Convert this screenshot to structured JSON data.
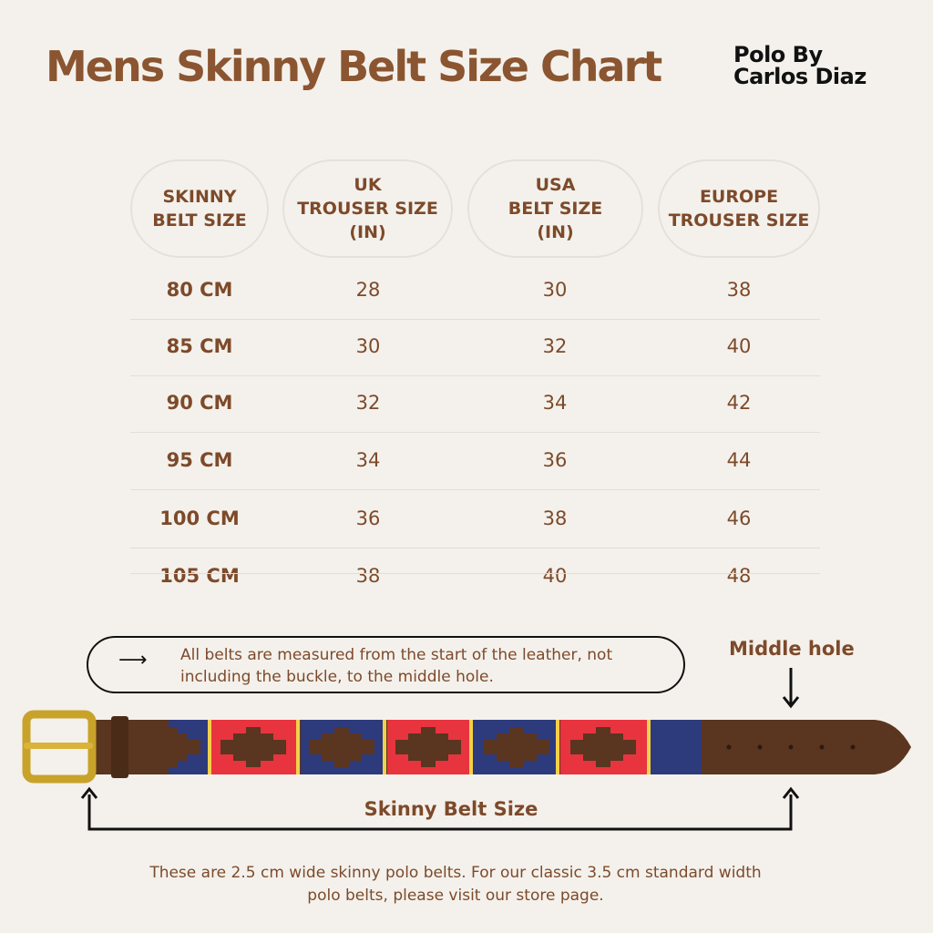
{
  "title": "Mens Skinny Belt Size Chart",
  "brand": {
    "line1": "Polo By",
    "line2": "Carlos Diaz"
  },
  "table": {
    "headers": [
      "SKINNY\nBELT SIZE",
      "UK\nTROUSER SIZE\n(IN)",
      "USA\nBELT SIZE\n(IN)",
      "EUROPE\nTROUSER SIZE"
    ],
    "rows": [
      [
        "80 CM",
        "28",
        "30",
        "38"
      ],
      [
        "85 CM",
        "30",
        "32",
        "40"
      ],
      [
        "90 CM",
        "32",
        "34",
        "42"
      ],
      [
        "95 CM",
        "34",
        "36",
        "44"
      ],
      [
        "100 CM",
        "36",
        "38",
        "46"
      ],
      [
        "105 CM",
        "38",
        "40",
        "48"
      ]
    ]
  },
  "note": {
    "icon": "arrow-right-icon",
    "text_line1": "All belts are measured from the start of the leather, not",
    "text_line2": "including the buckle, to the middle hole."
  },
  "middle_hole_label": "Middle hole",
  "size_label": "Skinny Belt Size",
  "footer": {
    "line1": "These are 2.5 cm wide skinny polo belts. For our classic 3.5 cm standard width",
    "line2": "polo belts, please visit our store page."
  },
  "colors": {
    "background": "#f4f1ec",
    "text_brown": "#7d4a2a",
    "leather": "#5a3520",
    "navy": "#2d3a7c",
    "red": "#e8343e",
    "yellow": "#f2d04a",
    "brass": "#c9a22a"
  }
}
